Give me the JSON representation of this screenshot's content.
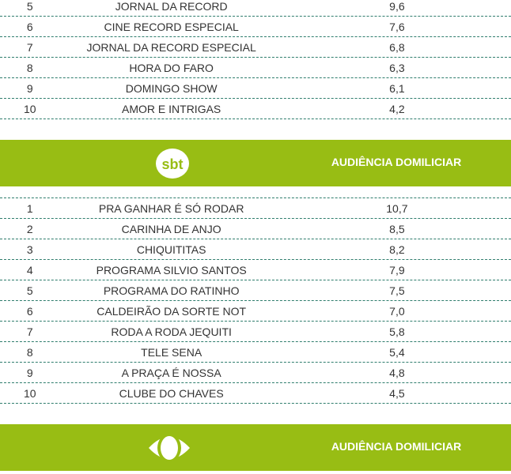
{
  "record": {
    "rows": [
      {
        "rank": "5",
        "name": "JORNAL DA RECORD",
        "value": "9,6"
      },
      {
        "rank": "6",
        "name": "CINE RECORD ESPECIAL",
        "value": "7,6"
      },
      {
        "rank": "7",
        "name": "JORNAL DA RECORD ESPECIAL",
        "value": "6,8"
      },
      {
        "rank": "8",
        "name": "HORA DO FARO",
        "value": "6,3"
      },
      {
        "rank": "9",
        "name": "DOMINGO SHOW",
        "value": "6,1"
      },
      {
        "rank": "10",
        "name": "AMOR E INTRIGAS",
        "value": "4,2"
      }
    ]
  },
  "sbt": {
    "logo_text": "sbt",
    "header": "AUDIÊNCIA DOMILICIAR",
    "rows": [
      {
        "rank": "1",
        "name": "PRA GANHAR É SÓ RODAR",
        "value": "10,7"
      },
      {
        "rank": "2",
        "name": "CARINHA DE ANJO",
        "value": "8,5"
      },
      {
        "rank": "3",
        "name": "CHIQUITITAS",
        "value": "8,2"
      },
      {
        "rank": "4",
        "name": "PROGRAMA SILVIO SANTOS",
        "value": "7,9"
      },
      {
        "rank": "5",
        "name": "PROGRAMA DO RATINHO",
        "value": "7,5"
      },
      {
        "rank": "6",
        "name": "CALDEIRÃO DA SORTE NOT",
        "value": "7,0"
      },
      {
        "rank": "7",
        "name": "RODA A RODA JEQUITI",
        "value": "5,8"
      },
      {
        "rank": "8",
        "name": "TELE SENA",
        "value": "5,4"
      },
      {
        "rank": "9",
        "name": "A PRAÇA É NOSSA",
        "value": "4,8"
      },
      {
        "rank": "10",
        "name": "CLUBE DO CHAVES",
        "value": "4,5"
      }
    ]
  },
  "band": {
    "header": "AUDIÊNCIA DOMILICIAR"
  },
  "colors": {
    "accent": "#98bd14",
    "divider": "#2f7d6d"
  }
}
